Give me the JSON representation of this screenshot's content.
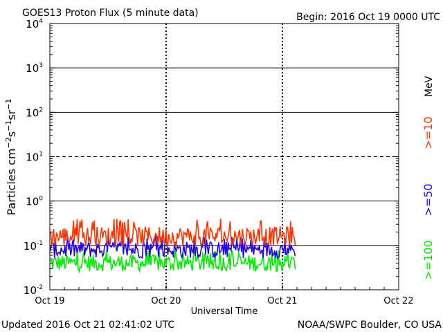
{
  "header": {
    "title": "GOES13 Proton Flux (5 minute data)",
    "begin": "Begin: 2016 Oct 19 0000 UTC"
  },
  "footer": {
    "updated": "Updated 2016 Oct 21 02:41:02 UTC",
    "credit": "NOAA/SWPC Boulder, CO USA"
  },
  "chart_data": {
    "type": "line",
    "title": "GOES13 Proton Flux (5 minute data)",
    "xlabel": "Universal Time",
    "ylabel": "Particles cm-2s-1sr-1",
    "y_scale": "log",
    "ylim": [
      0.01,
      10000
    ],
    "y_ticks": [
      {
        "base": "10",
        "exp": "-2"
      },
      {
        "base": "10",
        "exp": "-1"
      },
      {
        "base": "10",
        "exp": "0"
      },
      {
        "base": "10",
        "exp": "1"
      },
      {
        "base": "10",
        "exp": "2"
      },
      {
        "base": "10",
        "exp": "3"
      },
      {
        "base": "10",
        "exp": "4"
      }
    ],
    "x_ticks": [
      "Oct 19",
      "Oct 20",
      "Oct 21",
      "Oct 22"
    ],
    "x_range_days": [
      0,
      3
    ],
    "data_end_day": 2.11,
    "grid": "horizontal decades, dashed line at 10^1, vertical day markers",
    "legend": {
      "position": "right",
      "unit": "MeV",
      "entries": [
        {
          "label": ">=10",
          "color": "#ff3300"
        },
        {
          "label": ">=50",
          "color": "#3300ff"
        },
        {
          "label": ">=100",
          "color": "#00ee00"
        }
      ]
    },
    "series": [
      {
        "name": ">=10",
        "color": "#ff3300",
        "typical": 0.16,
        "range": [
          0.1,
          0.4
        ]
      },
      {
        "name": ">=50",
        "color": "#2200ee",
        "typical": 0.08,
        "range": [
          0.05,
          0.16
        ]
      },
      {
        "name": ">=100",
        "color": "#00ee00",
        "typical": 0.04,
        "range": [
          0.025,
          0.08
        ]
      }
    ]
  }
}
